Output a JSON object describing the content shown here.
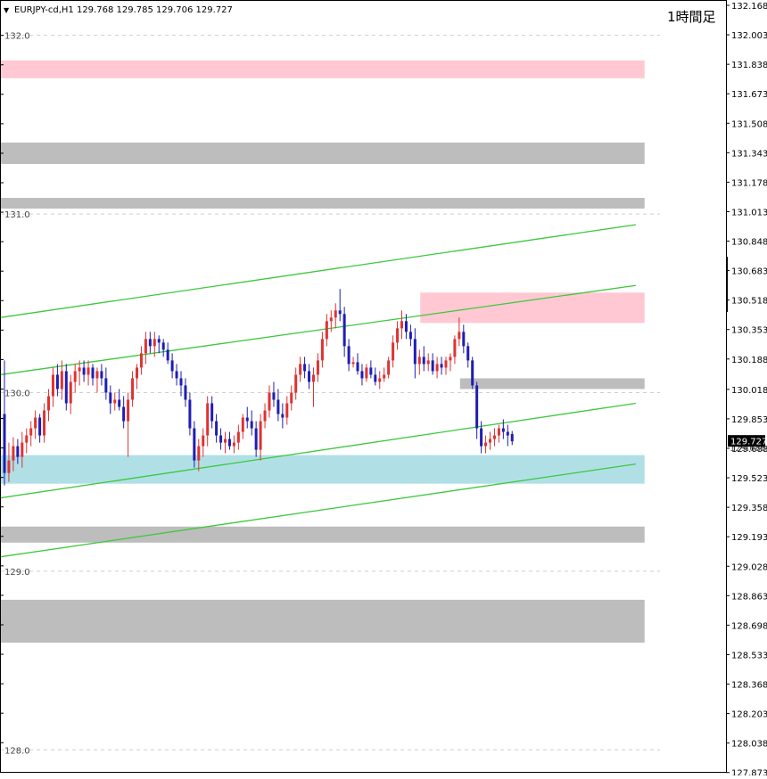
{
  "header": {
    "menu_arrow": "▼",
    "symbol_info": "EURJPY-cd,H1  129.768 129.785 129.706 129.727",
    "timeframe_label": "1時間足"
  },
  "current_price": {
    "label": "129.727",
    "value": 129.727,
    "hidden_tick_label": "129.688"
  },
  "chart_data": {
    "type": "candlestick",
    "symbol": "EURJPY-cd",
    "timeframe": "H1",
    "ohlc_header": {
      "open": 129.768,
      "high": 129.785,
      "low": 129.706,
      "close": 129.727
    },
    "ylim": [
      127.87,
      132.17
    ],
    "y_ticks": [
      "132.168",
      "132.003",
      "131.838",
      "131.673",
      "131.508",
      "131.343",
      "131.178",
      "131.013",
      "130.848",
      "130.683",
      "130.518",
      "130.353",
      "130.188",
      "130.018",
      "129.853",
      "129.688",
      "129.523",
      "129.358",
      "129.193",
      "129.028",
      "128.863",
      "128.698",
      "128.533",
      "128.368",
      "128.203",
      "128.038",
      "127.873"
    ],
    "round_levels": [
      {
        "label": "132.0",
        "price": 132.0
      },
      {
        "label": "131.0",
        "price": 131.0
      },
      {
        "label": "130.0",
        "price": 130.0
      },
      {
        "label": "129.0",
        "price": 129.0
      },
      {
        "label": "128.0",
        "price": 128.0
      }
    ],
    "zones": [
      {
        "type": "resistance",
        "color": "#ffc8d2",
        "x_start": 0,
        "x_end": 145,
        "y_top": 131.86,
        "y_bottom": 131.76
      },
      {
        "type": "level",
        "color": "#bdbdbd",
        "x_start": 0,
        "x_end": 145,
        "y_top": 131.4,
        "y_bottom": 131.28
      },
      {
        "type": "level",
        "color": "#bdbdbd",
        "x_start": 0,
        "x_end": 145,
        "y_top": 131.09,
        "y_bottom": 131.03
      },
      {
        "type": "resistance",
        "color": "#ffc8d2",
        "x_start": 95,
        "x_end": 145,
        "y_top": 130.56,
        "y_bottom": 130.39
      },
      {
        "type": "level",
        "color": "#bdbdbd",
        "x_start": 104,
        "x_end": 145,
        "y_top": 130.08,
        "y_bottom": 130.02
      },
      {
        "type": "support",
        "color": "#b0e0e6",
        "x_start": 0,
        "x_end": 145,
        "y_top": 129.65,
        "y_bottom": 129.49
      },
      {
        "type": "level",
        "color": "#bdbdbd",
        "x_start": 0,
        "x_end": 145,
        "y_top": 129.25,
        "y_bottom": 129.16
      },
      {
        "type": "level",
        "color": "#bdbdbd",
        "x_start": 0,
        "x_end": 145,
        "y_top": 128.84,
        "y_bottom": 128.6
      }
    ],
    "channel_lines": [
      {
        "color": "#3cc83c",
        "x1": 0,
        "y1": 130.42,
        "x2": 143,
        "y2": 130.94
      },
      {
        "color": "#3cc83c",
        "x1": 0,
        "y1": 130.1,
        "x2": 143,
        "y2": 130.6
      },
      {
        "color": "#3cc83c",
        "x1": 0,
        "y1": 129.41,
        "x2": 143,
        "y2": 129.94
      },
      {
        "color": "#3cc83c",
        "x1": 0,
        "y1": 129.08,
        "x2": 143,
        "y2": 129.6
      }
    ],
    "candle_colors": {
      "up": "#e03232",
      "down": "#1e1eb4",
      "neutral": "#28a028"
    },
    "candles": [
      [
        129.88,
        130.18,
        129.48,
        129.55
      ],
      [
        129.55,
        129.72,
        129.5,
        129.62
      ],
      [
        129.62,
        129.75,
        129.56,
        129.7
      ],
      [
        129.7,
        129.74,
        129.6,
        129.64
      ],
      [
        129.64,
        129.78,
        129.58,
        129.72
      ],
      [
        129.72,
        129.8,
        129.66,
        129.76
      ],
      [
        129.76,
        129.84,
        129.7,
        129.8
      ],
      [
        129.8,
        129.9,
        129.74,
        129.86
      ],
      [
        129.86,
        129.88,
        129.72,
        129.76
      ],
      [
        129.76,
        129.94,
        129.72,
        129.9
      ],
      [
        129.9,
        130.02,
        129.84,
        129.98
      ],
      [
        129.98,
        130.14,
        129.92,
        130.1
      ],
      [
        130.1,
        130.16,
        129.98,
        130.02
      ],
      [
        130.02,
        130.18,
        129.96,
        130.12
      ],
      [
        130.12,
        130.16,
        129.9,
        129.94
      ],
      [
        129.94,
        130.1,
        129.88,
        130.06
      ],
      [
        130.06,
        130.16,
        130.0,
        130.12
      ],
      [
        130.12,
        130.18,
        130.04,
        130.14
      ],
      [
        130.14,
        130.18,
        130.06,
        130.1
      ],
      [
        130.1,
        130.18,
        130.04,
        130.14
      ],
      [
        130.14,
        130.16,
        130.04,
        130.08
      ],
      [
        130.08,
        130.14,
        130.0,
        130.12
      ],
      [
        130.12,
        130.16,
        130.04,
        130.08
      ],
      [
        130.08,
        130.14,
        129.96,
        130.0
      ],
      [
        130.0,
        130.04,
        129.88,
        129.94
      ],
      [
        129.94,
        130.0,
        129.9,
        129.96
      ],
      [
        129.96,
        130.02,
        129.9,
        129.92
      ],
      [
        129.92,
        129.98,
        129.8,
        129.84
      ],
      [
        129.84,
        130.0,
        129.64,
        129.96
      ],
      [
        129.96,
        130.12,
        129.92,
        130.08
      ],
      [
        130.08,
        130.16,
        130.02,
        130.14
      ],
      [
        130.14,
        130.26,
        130.1,
        130.22
      ],
      [
        130.22,
        130.34,
        130.16,
        130.3
      ],
      [
        130.3,
        130.34,
        130.22,
        130.26
      ],
      [
        130.26,
        130.34,
        130.2,
        130.3
      ],
      [
        130.3,
        130.32,
        130.22,
        130.28
      ],
      [
        130.28,
        130.3,
        130.2,
        130.24
      ],
      [
        130.24,
        130.28,
        130.16,
        130.18
      ],
      [
        130.18,
        130.22,
        130.08,
        130.12
      ],
      [
        130.12,
        130.16,
        130.04,
        130.08
      ],
      [
        130.08,
        130.12,
        129.98,
        130.04
      ],
      [
        130.04,
        130.08,
        129.92,
        129.96
      ],
      [
        129.96,
        130.0,
        129.76,
        129.8
      ],
      [
        129.8,
        129.84,
        129.58,
        129.62
      ],
      [
        129.62,
        129.74,
        129.56,
        129.7
      ],
      [
        129.7,
        129.8,
        129.64,
        129.76
      ],
      [
        129.76,
        129.98,
        129.7,
        129.94
      ],
      [
        129.94,
        129.98,
        129.8,
        129.84
      ],
      [
        129.84,
        129.88,
        129.72,
        129.76
      ],
      [
        129.76,
        129.8,
        129.68,
        129.72
      ],
      [
        129.72,
        129.78,
        129.66,
        129.74
      ],
      [
        129.74,
        129.78,
        129.68,
        129.7
      ],
      [
        129.7,
        129.76,
        129.66,
        129.72
      ],
      [
        129.72,
        129.82,
        129.68,
        129.78
      ],
      [
        129.78,
        129.88,
        129.74,
        129.86
      ],
      [
        129.86,
        129.92,
        129.8,
        129.84
      ],
      [
        129.84,
        129.9,
        129.76,
        129.8
      ],
      [
        129.8,
        129.84,
        129.64,
        129.68
      ],
      [
        129.68,
        129.88,
        129.62,
        129.84
      ],
      [
        129.84,
        129.94,
        129.8,
        129.9
      ],
      [
        129.9,
        130.04,
        129.86,
        130.0
      ],
      [
        130.0,
        130.06,
        129.92,
        129.96
      ],
      [
        129.96,
        130.02,
        129.84,
        129.88
      ],
      [
        129.88,
        129.94,
        129.8,
        129.86
      ],
      [
        129.86,
        129.98,
        129.82,
        129.94
      ],
      [
        129.94,
        130.04,
        129.9,
        130.0
      ],
      [
        130.0,
        130.14,
        129.96,
        130.1
      ],
      [
        130.1,
        130.2,
        130.06,
        130.16
      ],
      [
        130.16,
        130.2,
        130.08,
        130.12
      ],
      [
        130.12,
        130.16,
        130.02,
        130.06
      ],
      [
        130.06,
        130.14,
        129.92,
        130.1
      ],
      [
        130.1,
        130.22,
        130.06,
        130.18
      ],
      [
        130.18,
        130.34,
        130.14,
        130.3
      ],
      [
        130.3,
        130.44,
        130.26,
        130.4
      ],
      [
        130.4,
        130.46,
        130.34,
        130.42
      ],
      [
        130.42,
        130.5,
        130.36,
        130.46
      ],
      [
        130.46,
        130.58,
        130.4,
        130.44
      ],
      [
        130.44,
        130.48,
        130.2,
        130.26
      ],
      [
        130.26,
        130.3,
        130.12,
        130.16
      ],
      [
        130.16,
        130.2,
        130.14,
        130.17
      ],
      [
        130.17,
        130.22,
        130.1,
        130.12
      ],
      [
        130.12,
        130.16,
        130.04,
        130.08
      ],
      [
        130.08,
        130.16,
        130.06,
        130.14
      ],
      [
        130.14,
        130.18,
        130.08,
        130.1
      ],
      [
        130.1,
        130.14,
        130.04,
        130.06
      ],
      [
        130.06,
        130.12,
        130.02,
        130.08
      ],
      [
        130.08,
        130.14,
        130.06,
        130.1
      ],
      [
        130.1,
        130.2,
        130.08,
        130.18
      ],
      [
        130.18,
        130.32,
        130.14,
        130.28
      ],
      [
        130.28,
        130.4,
        130.24,
        130.36
      ],
      [
        130.36,
        130.46,
        130.3,
        130.4
      ],
      [
        130.4,
        130.44,
        130.3,
        130.34
      ],
      [
        130.34,
        130.38,
        130.26,
        130.3
      ],
      [
        130.3,
        130.36,
        130.08,
        130.16
      ],
      [
        130.16,
        130.24,
        130.1,
        130.2
      ],
      [
        130.2,
        130.26,
        130.12,
        130.16
      ],
      [
        130.16,
        130.22,
        130.12,
        130.18
      ],
      [
        130.18,
        130.22,
        130.1,
        130.12
      ],
      [
        130.12,
        130.2,
        130.08,
        130.16
      ],
      [
        130.16,
        130.2,
        130.1,
        130.14
      ],
      [
        130.14,
        130.2,
        130.1,
        130.18
      ],
      [
        130.18,
        130.22,
        130.12,
        130.2
      ],
      [
        130.2,
        130.32,
        130.16,
        130.3
      ],
      [
        130.3,
        130.42,
        130.26,
        130.34
      ],
      [
        130.34,
        130.38,
        130.22,
        130.26
      ],
      [
        130.26,
        130.28,
        130.14,
        130.18
      ],
      [
        130.18,
        130.2,
        130.02,
        130.04
      ],
      [
        130.04,
        130.06,
        129.74,
        129.8
      ],
      [
        129.8,
        129.84,
        129.66,
        129.7
      ],
      [
        129.7,
        129.76,
        129.66,
        129.72
      ],
      [
        129.72,
        129.78,
        129.68,
        129.74
      ],
      [
        129.74,
        129.8,
        129.7,
        129.76
      ],
      [
        129.76,
        129.82,
        129.72,
        129.8
      ],
      [
        129.8,
        129.85,
        129.74,
        129.78
      ],
      [
        129.78,
        129.82,
        129.7,
        129.76
      ],
      [
        129.768,
        129.785,
        129.706,
        129.727
      ]
    ]
  }
}
